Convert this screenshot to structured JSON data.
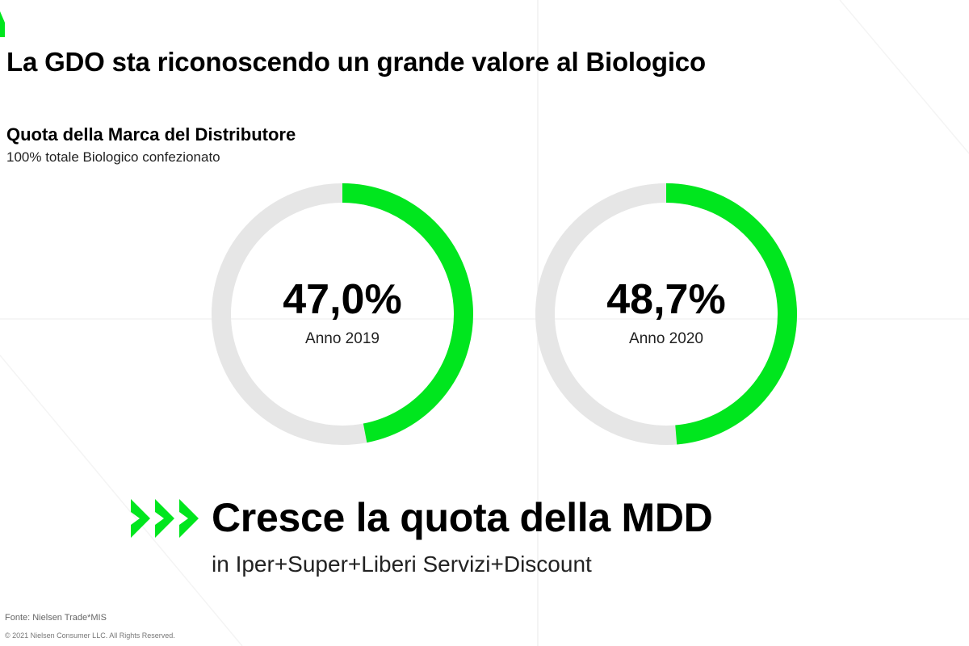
{
  "page": {
    "title": "La GDO sta riconoscendo un grande valore al Biologico"
  },
  "colors": {
    "accent": "#00e61e",
    "track": "#e6e6e6"
  },
  "chart_data": {
    "type": "pie",
    "title": "",
    "subtitle": "Quota della Marca del Distributore",
    "note": "100% totale Biologico confezionato",
    "unit": "%",
    "charts": [
      {
        "label": "Anno 2019",
        "display": "47,0%",
        "value": 47.0
      },
      {
        "label": "Anno 2020",
        "display": "48,7%",
        "value": 48.7
      }
    ]
  },
  "headline": {
    "text": "Cresce la quota della MDD",
    "sub": "in Iper+Super+Liberi Servizi+Discount",
    "icon": "triple-chevron-right-icon"
  },
  "footer": {
    "source": "Fonte: Nielsen Trade*MIS",
    "copyright": "© 2021 Nielsen Consumer LLC. All Rights Reserved."
  }
}
